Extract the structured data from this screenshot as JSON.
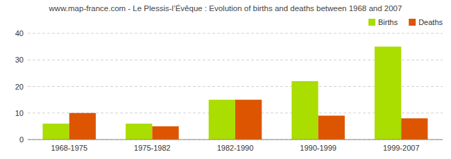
{
  "chart_data": {
    "type": "bar",
    "title": "www.map-france.com - Le Plessis-l’Évêque : Evolution of births and deaths between 1968 and 2007",
    "categories": [
      "1968-1975",
      "1975-1982",
      "1982-1990",
      "1990-1999",
      "1999-2007"
    ],
    "series": [
      {
        "name": "Births",
        "color": "#aadd00",
        "values": [
          6,
          6,
          15,
          22,
          35
        ]
      },
      {
        "name": "Deaths",
        "color": "#dd5500",
        "values": [
          10,
          5,
          15,
          9,
          8
        ]
      }
    ],
    "ylim": [
      0,
      40
    ],
    "yticks": [
      0,
      10,
      20,
      30,
      40
    ],
    "grid": true,
    "legend": "upper right"
  }
}
